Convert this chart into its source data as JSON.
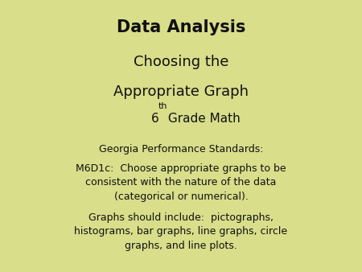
{
  "background_color": "#d8de8a",
  "title_line1": "Data Analysis",
  "title_line2": "Choosing the",
  "title_line3": "Appropriate Graph",
  "grade_num": "6",
  "grade_sup": "th",
  "grade_rest": " Grade Math",
  "body_line1": "Georgia Performance Standards:",
  "body_line2": "M6D1c:  Choose appropriate graphs to be\nconsistent with the nature of the data\n(categorical or numerical).",
  "body_line3": "Graphs should include:  pictographs,\nhistograms, bar graphs, line graphs, circle\ngraphs, and line plots.",
  "title_fontsize": 15,
  "subtitle_fontsize": 13,
  "grade_fontsize": 11,
  "grade_sup_fontsize": 8,
  "body_fontsize": 9,
  "text_color": "#111111"
}
